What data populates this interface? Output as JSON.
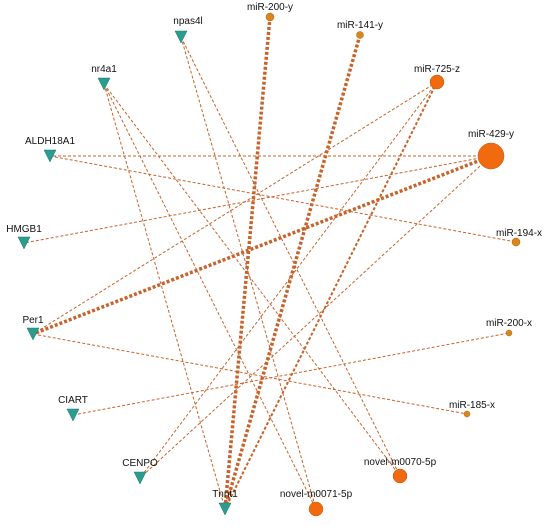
{
  "nodes": [
    {
      "label": "npas4l"
    },
    {
      "label": "nr4a1"
    },
    {
      "label": "ALDH18A1"
    },
    {
      "label": "HMGB1"
    },
    {
      "label": "Per1"
    },
    {
      "label": "CIART"
    },
    {
      "label": "CENPO"
    },
    {
      "label": "Tnnt1"
    },
    {
      "label": "miR-200-y"
    },
    {
      "label": "miR-141-y"
    },
    {
      "label": "miR-725-z"
    },
    {
      "label": "miR-429-y"
    },
    {
      "label": "miR-194-x"
    },
    {
      "label": "miR-200-x"
    },
    {
      "label": "miR-185-x"
    },
    {
      "label": "novel-m0070-5p"
    },
    {
      "label": "novel-m0071-5p"
    }
  ]
}
